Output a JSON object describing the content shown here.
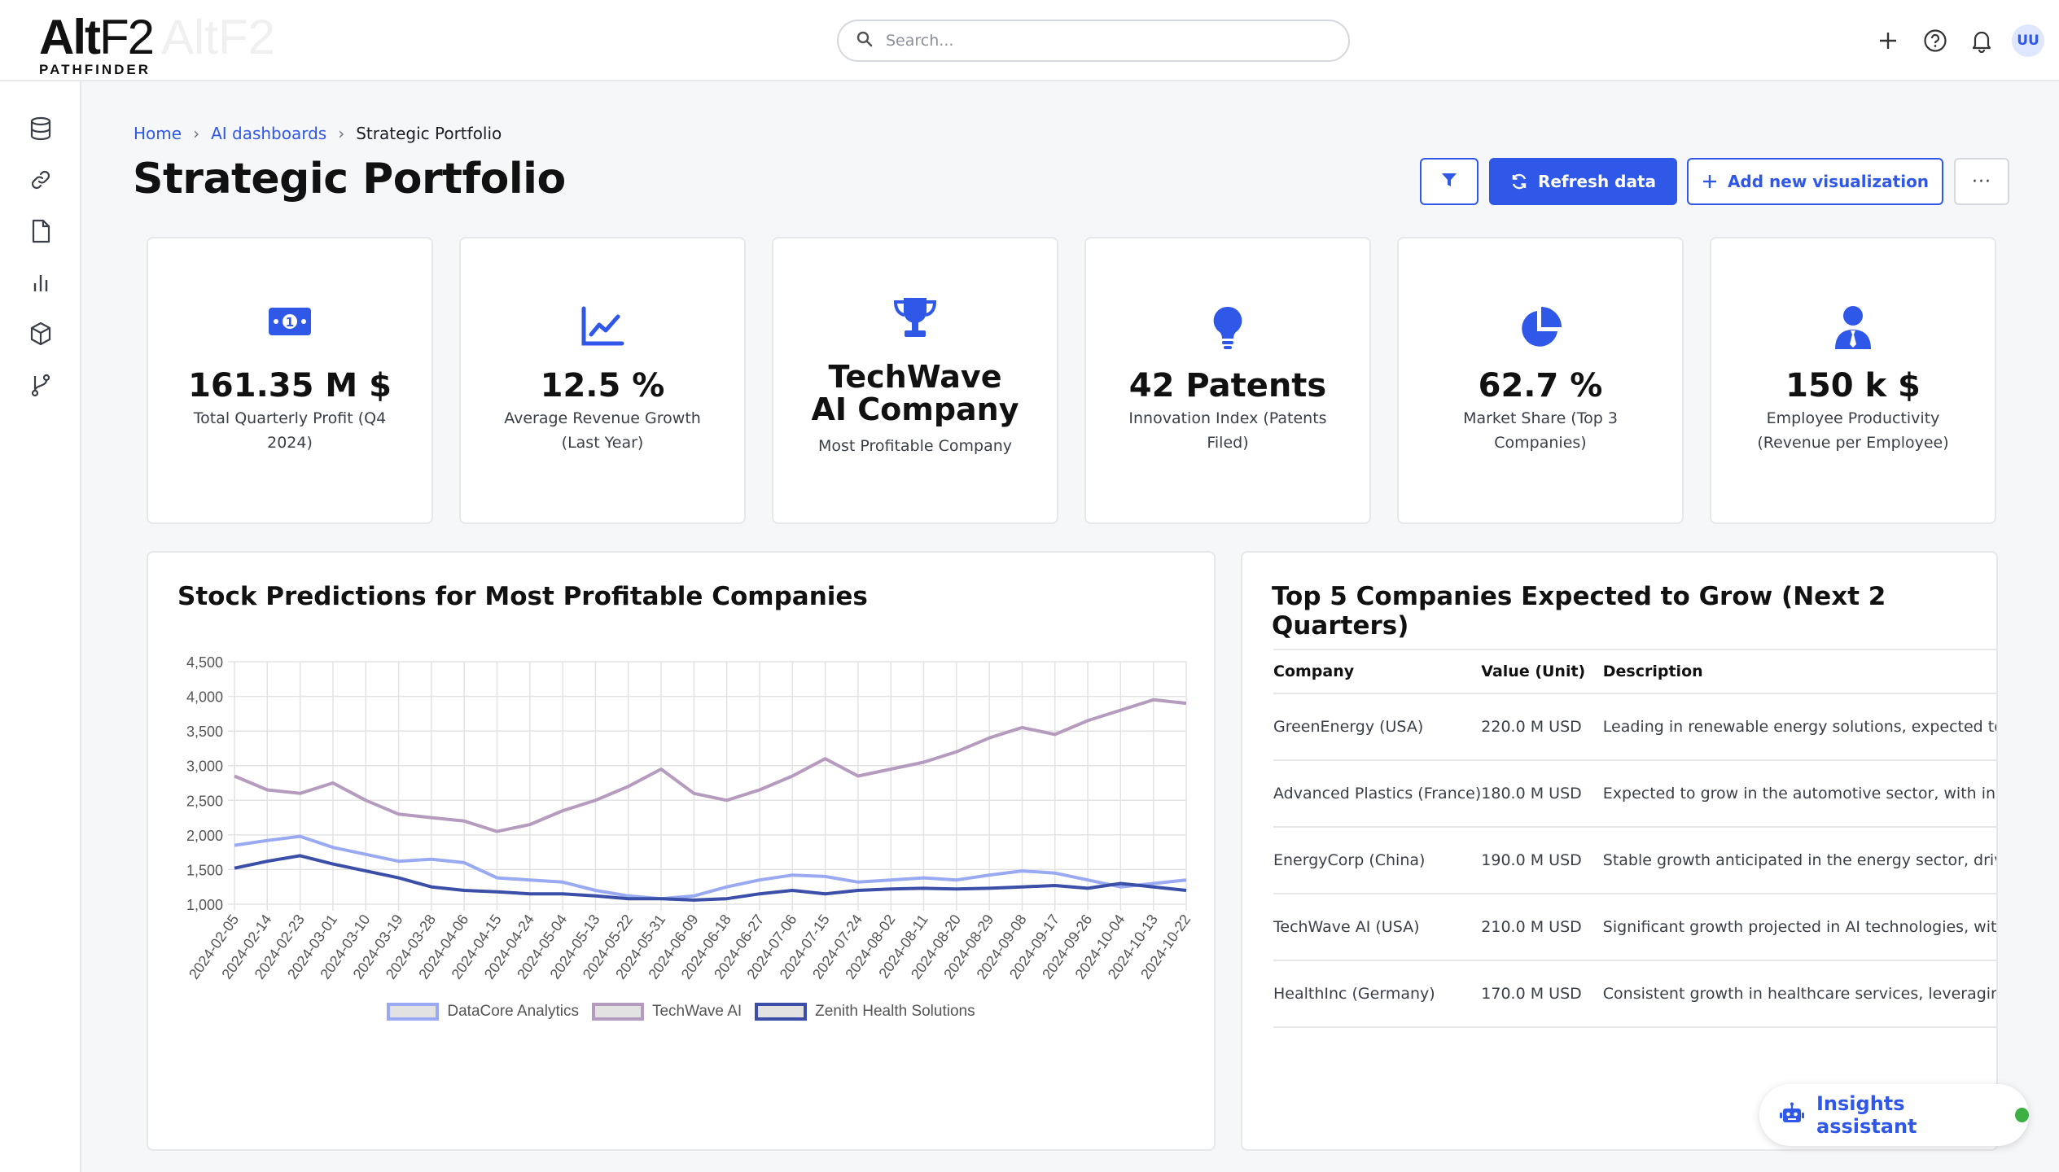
{
  "app": {
    "logo_main": "Alt",
    "logo_f2": "F2",
    "logo_sub": "PATHFINDER",
    "logo_ghost": "AltF2"
  },
  "search": {
    "placeholder": "Search..."
  },
  "topbar": {
    "avatar_initials": "UU"
  },
  "sidebar": {
    "items": [
      "database-icon",
      "link-icon",
      "document-icon",
      "bar-chart-icon",
      "package-icon",
      "git-branch-icon"
    ]
  },
  "breadcrumb": {
    "home": "Home",
    "section": "AI dashboards",
    "current": "Strategic Portfolio"
  },
  "page": {
    "title": "Strategic Portfolio"
  },
  "toolbar": {
    "refresh_label": "Refresh data",
    "add_label": "Add new visualization",
    "more_label": "···"
  },
  "kpis": [
    {
      "icon": "money-icon",
      "value": "161.35 M $",
      "label": "Total Quarterly Profit (Q4 2024)"
    },
    {
      "icon": "line-chart-icon",
      "value": "12.5 %",
      "label": "Average Revenue Growth (Last Year)"
    },
    {
      "icon": "trophy-icon",
      "value": "TechWave AI Company",
      "label": "Most Profitable Company"
    },
    {
      "icon": "lightbulb-icon",
      "value": "42 Patents",
      "label": "Innovation Index (Patents Filed)"
    },
    {
      "icon": "pie-chart-icon",
      "value": "62.7 %",
      "label": "Market Share (Top 3 Companies)"
    },
    {
      "icon": "employee-icon",
      "value": "150 k $",
      "label": "Employee Productivity (Revenue per Employee)"
    }
  ],
  "colors": {
    "accent": "#2f58e8",
    "datacore": "#9aaaf2",
    "techwave": "#b59bbd",
    "zenith": "#3b4fa8"
  },
  "stock_panel": {
    "title": "Stock Predictions for Most Profitable Companies"
  },
  "chart_data": {
    "type": "line",
    "title": "Stock Predictions for Most Profitable Companies",
    "xlabel": "",
    "ylabel": "",
    "ylim": [
      1000,
      4500
    ],
    "yticks": [
      "1,000",
      "1,500",
      "2,000",
      "2,500",
      "3,000",
      "3,500",
      "4,000",
      "4,500"
    ],
    "x": [
      "2024-02-05",
      "2024-02-14",
      "2024-02-23",
      "2024-03-01",
      "2024-03-10",
      "2024-03-19",
      "2024-03-28",
      "2024-04-06",
      "2024-04-15",
      "2024-04-24",
      "2024-05-04",
      "2024-05-13",
      "2024-05-22",
      "2024-05-31",
      "2024-06-09",
      "2024-06-18",
      "2024-06-27",
      "2024-07-06",
      "2024-07-15",
      "2024-07-24",
      "2024-08-02",
      "2024-08-11",
      "2024-08-20",
      "2024-08-29",
      "2024-09-08",
      "2024-09-17",
      "2024-09-26",
      "2024-10-04",
      "2024-10-13",
      "2024-10-22"
    ],
    "grid": true,
    "legend_position": "bottom",
    "series": [
      {
        "name": "DataCore Analytics",
        "values": [
          1850,
          1920,
          1980,
          1820,
          1720,
          1620,
          1650,
          1600,
          1380,
          1350,
          1320,
          1200,
          1120,
          1080,
          1120,
          1250,
          1350,
          1420,
          1400,
          1320,
          1350,
          1380,
          1350,
          1420,
          1480,
          1450,
          1350,
          1250,
          1300,
          1350
        ]
      },
      {
        "name": "TechWave AI",
        "values": [
          2850,
          2650,
          2600,
          2750,
          2500,
          2300,
          2250,
          2200,
          2050,
          2150,
          2350,
          2500,
          2700,
          2950,
          2600,
          2500,
          2650,
          2850,
          3100,
          2850,
          2950,
          3050,
          3200,
          3400,
          3550,
          3450,
          3650,
          3800,
          3950,
          3900
        ]
      },
      {
        "name": "Zenith Health Solutions",
        "values": [
          1520,
          1620,
          1700,
          1580,
          1480,
          1380,
          1250,
          1200,
          1180,
          1150,
          1150,
          1120,
          1080,
          1080,
          1060,
          1080,
          1150,
          1200,
          1150,
          1200,
          1220,
          1230,
          1220,
          1230,
          1250,
          1270,
          1230,
          1300,
          1250,
          1200
        ]
      }
    ]
  },
  "growth_panel": {
    "title": "Top 5 Companies Expected to Grow (Next 2 Quarters)",
    "columns": [
      "Company",
      "Value (Unit)",
      "Description"
    ],
    "rows": [
      {
        "company": "GreenEnergy (USA)",
        "value": "220.0 M USD",
        "description": "Leading in renewable energy solutions, expected to s"
      },
      {
        "company": "Advanced Plastics (France)",
        "value": "180.0 M USD",
        "description": "Expected to grow in the automotive sector, with inno"
      },
      {
        "company": "EnergyCorp (China)",
        "value": "190.0 M USD",
        "description": "Stable growth anticipated in the energy sector, drive"
      },
      {
        "company": "TechWave AI (USA)",
        "value": "210.0 M USD",
        "description": "Significant growth projected in AI technologies, with"
      },
      {
        "company": "HealthInc (Germany)",
        "value": "170.0 M USD",
        "description": "Consistent growth in healthcare services, leveraging"
      }
    ]
  },
  "assistant": {
    "label": "Insights assistant"
  }
}
